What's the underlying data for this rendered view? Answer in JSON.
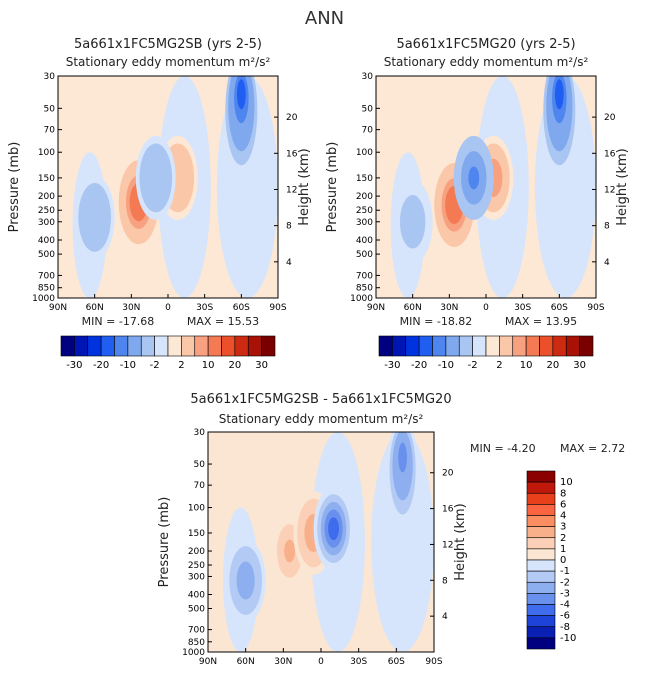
{
  "page_title": "ANN",
  "units_label": "m²/s²",
  "chart_data": [
    {
      "type": "heatmap",
      "title": "5a661x1FC5MG2SB (yrs 2-5)",
      "subtitle": "Stationary eddy momentum",
      "ylabel": "Pressure (mb)",
      "ylabel_right": "Height (km)",
      "xlabel": "",
      "x_ticks": [
        "90N",
        "60N",
        "30N",
        "0",
        "30S",
        "60S",
        "90S"
      ],
      "y_ticks": [
        "30",
        "50",
        "70",
        "100",
        "150",
        "200",
        "250",
        "300",
        "400",
        "500",
        "700",
        "850",
        "1000"
      ],
      "y_right_ticks": [
        "20",
        "16",
        "12",
        "8",
        "4"
      ],
      "ylim": [
        1000,
        30
      ],
      "xlim": [
        90,
        -90
      ],
      "min_label": "MIN = -17.68",
      "max_label": "MAX = 15.53",
      "min": -17.68,
      "max": 15.53,
      "features": [
        {
          "lat": 24,
          "p": 220,
          "value": 14,
          "name": "positive-max"
        },
        {
          "lat": -8,
          "p": 150,
          "value": 6,
          "name": "positive-secondary"
        },
        {
          "lat": 10,
          "p": 150,
          "value": -5,
          "name": "negative-equator"
        },
        {
          "lat": 60,
          "p": 280,
          "value": -5,
          "name": "negative-60n"
        },
        {
          "lat": -60,
          "p": 40,
          "value": -16,
          "name": "negative-upper-60s"
        }
      ],
      "colorbar": {
        "labels": [
          "-30",
          "-20",
          "-10",
          "-2",
          "2",
          "10",
          "20",
          "30"
        ]
      }
    },
    {
      "type": "heatmap",
      "title": "5a661x1FC5MG20 (yrs 2-5)",
      "subtitle": "Stationary eddy momentum",
      "ylabel": "Pressure (mb)",
      "ylabel_right": "Height (km)",
      "xlabel": "",
      "x_ticks": [
        "90N",
        "60N",
        "30N",
        "0",
        "30S",
        "60S",
        "90S"
      ],
      "y_ticks": [
        "30",
        "50",
        "70",
        "100",
        "150",
        "200",
        "250",
        "300",
        "400",
        "500",
        "700",
        "850",
        "1000"
      ],
      "y_right_ticks": [
        "20",
        "16",
        "12",
        "8",
        "4"
      ],
      "ylim": [
        1000,
        30
      ],
      "xlim": [
        90,
        -90
      ],
      "min_label": "MIN = -18.82",
      "max_label": "MAX = 13.95",
      "min": -18.82,
      "max": 13.95,
      "features": [
        {
          "lat": 26,
          "p": 230,
          "value": 13,
          "name": "positive-max"
        },
        {
          "lat": -6,
          "p": 150,
          "value": 8,
          "name": "positive-secondary"
        },
        {
          "lat": 10,
          "p": 150,
          "value": -12,
          "name": "negative-equator"
        },
        {
          "lat": 60,
          "p": 300,
          "value": -4,
          "name": "negative-60n"
        },
        {
          "lat": -60,
          "p": 40,
          "value": -15,
          "name": "negative-upper-60s"
        }
      ],
      "colorbar": {
        "labels": [
          "-30",
          "-20",
          "-10",
          "-2",
          "2",
          "10",
          "20",
          "30"
        ]
      }
    },
    {
      "type": "heatmap",
      "title": "5a661x1FC5MG2SB - 5a661x1FC5MG20",
      "subtitle": "Stationary eddy momentum",
      "ylabel": "Pressure (mb)",
      "ylabel_right": "Height (km)",
      "xlabel": "",
      "x_ticks": [
        "90N",
        "60N",
        "30N",
        "0",
        "30S",
        "60S",
        "90S"
      ],
      "y_ticks": [
        "30",
        "50",
        "70",
        "100",
        "150",
        "200",
        "250",
        "300",
        "400",
        "500",
        "700",
        "850",
        "1000"
      ],
      "y_right_ticks": [
        "20",
        "16",
        "12",
        "8",
        "4"
      ],
      "ylim": [
        1000,
        30
      ],
      "xlim": [
        90,
        -90
      ],
      "min_label": "MIN =   -4.20",
      "max_label": "MAX =    2.72",
      "min": -4.2,
      "max": 2.72,
      "features": [
        {
          "lat": 25,
          "p": 200,
          "value": 2.5,
          "name": "positive-30n"
        },
        {
          "lat": 6,
          "p": 150,
          "value": 2.7,
          "name": "positive-equator"
        },
        {
          "lat": -10,
          "p": 140,
          "value": -4.2,
          "name": "negative-10s"
        },
        {
          "lat": 60,
          "p": 320,
          "value": -2.5,
          "name": "negative-60n"
        },
        {
          "lat": -65,
          "p": 45,
          "value": -3.5,
          "name": "negative-upper-60s"
        }
      ],
      "colorbar": {
        "labels": [
          "10",
          "8",
          "6",
          "4",
          "3",
          "2",
          "1",
          "0",
          "-1",
          "-2",
          "-3",
          "-4",
          "-6",
          "-8",
          "-10"
        ]
      }
    }
  ],
  "colors": {
    "diverging_blue_to_red": [
      "#000080",
      "#0016b4",
      "#0033e0",
      "#1f5ef0",
      "#4f85ee",
      "#7fa8ee",
      "#a9c5f2",
      "#d6e5fb",
      "#fde8d6",
      "#fbc7a9",
      "#f8a180",
      "#f37a52",
      "#eb502a",
      "#cc2b12",
      "#a81206",
      "#7a0000"
    ],
    "diff_bar_top_to_bottom": [
      "#8b0000",
      "#c0180a",
      "#e8401a",
      "#fb6440",
      "#fa8e62",
      "#f8b08b",
      "#fcd0b6",
      "#fbe6d3",
      "#d6e5fb",
      "#b3cbf4",
      "#8eafef",
      "#6990ec",
      "#3f6cec",
      "#1d43d9",
      "#0a1fb4",
      "#000080"
    ]
  }
}
